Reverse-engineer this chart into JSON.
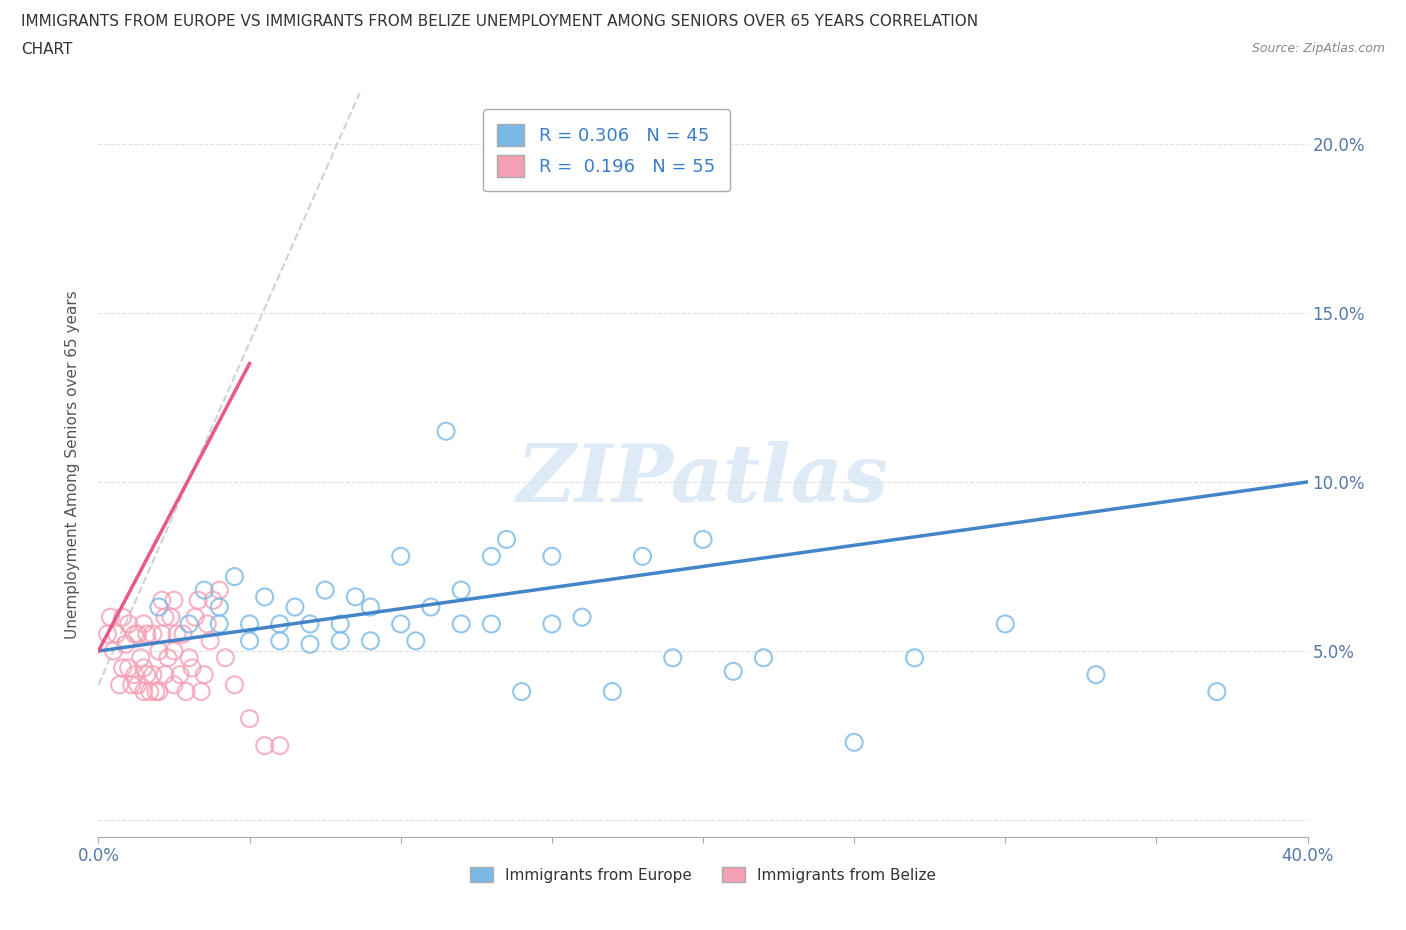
{
  "title_line1": "IMMIGRANTS FROM EUROPE VS IMMIGRANTS FROM BELIZE UNEMPLOYMENT AMONG SENIORS OVER 65 YEARS CORRELATION",
  "title_line2": "CHART",
  "source": "Source: ZipAtlas.com",
  "ylabel": "Unemployment Among Seniors over 65 years",
  "xlim": [
    0.0,
    0.4
  ],
  "ylim": [
    -0.005,
    0.215
  ],
  "europe_R": 0.306,
  "europe_N": 45,
  "belize_R": 0.196,
  "belize_N": 55,
  "europe_color": "#7ab8e8",
  "belize_color": "#f4a0b5",
  "trend_europe_color": "#3a7ec8",
  "trend_belize_color": "#e85080",
  "trend_belize_dash_color": "#cccccc",
  "watermark_color": "#c8dff0",
  "legend_label_europe": "Immigrants from Europe",
  "legend_label_belize": "Immigrants from Belize",
  "europe_x": [
    0.02,
    0.03,
    0.035,
    0.04,
    0.04,
    0.045,
    0.05,
    0.05,
    0.055,
    0.06,
    0.06,
    0.065,
    0.07,
    0.07,
    0.075,
    0.08,
    0.08,
    0.085,
    0.09,
    0.09,
    0.1,
    0.1,
    0.105,
    0.11,
    0.115,
    0.12,
    0.12,
    0.13,
    0.13,
    0.135,
    0.14,
    0.15,
    0.15,
    0.16,
    0.17,
    0.18,
    0.19,
    0.2,
    0.21,
    0.22,
    0.25,
    0.27,
    0.3,
    0.33,
    0.37
  ],
  "europe_y": [
    0.063,
    0.058,
    0.068,
    0.058,
    0.063,
    0.072,
    0.053,
    0.058,
    0.066,
    0.053,
    0.058,
    0.063,
    0.052,
    0.058,
    0.068,
    0.053,
    0.058,
    0.066,
    0.053,
    0.063,
    0.058,
    0.078,
    0.053,
    0.063,
    0.115,
    0.058,
    0.068,
    0.058,
    0.078,
    0.083,
    0.038,
    0.058,
    0.078,
    0.06,
    0.038,
    0.078,
    0.048,
    0.083,
    0.044,
    0.048,
    0.023,
    0.048,
    0.058,
    0.043,
    0.038
  ],
  "belize_x": [
    0.003,
    0.004,
    0.005,
    0.006,
    0.007,
    0.008,
    0.008,
    0.009,
    0.01,
    0.01,
    0.011,
    0.012,
    0.012,
    0.013,
    0.013,
    0.014,
    0.015,
    0.015,
    0.015,
    0.016,
    0.016,
    0.017,
    0.018,
    0.018,
    0.019,
    0.02,
    0.02,
    0.021,
    0.021,
    0.022,
    0.022,
    0.023,
    0.024,
    0.025,
    0.025,
    0.025,
    0.026,
    0.027,
    0.028,
    0.029,
    0.03,
    0.031,
    0.032,
    0.033,
    0.034,
    0.035,
    0.036,
    0.037,
    0.038,
    0.04,
    0.042,
    0.045,
    0.05,
    0.055,
    0.06
  ],
  "belize_y": [
    0.055,
    0.06,
    0.05,
    0.055,
    0.04,
    0.045,
    0.06,
    0.052,
    0.045,
    0.058,
    0.04,
    0.043,
    0.055,
    0.04,
    0.055,
    0.048,
    0.038,
    0.045,
    0.058,
    0.043,
    0.055,
    0.038,
    0.043,
    0.055,
    0.038,
    0.038,
    0.05,
    0.055,
    0.065,
    0.043,
    0.06,
    0.048,
    0.06,
    0.04,
    0.05,
    0.065,
    0.055,
    0.043,
    0.055,
    0.038,
    0.048,
    0.045,
    0.06,
    0.065,
    0.038,
    0.043,
    0.058,
    0.053,
    0.065,
    0.068,
    0.048,
    0.04,
    0.03,
    0.022,
    0.022
  ]
}
